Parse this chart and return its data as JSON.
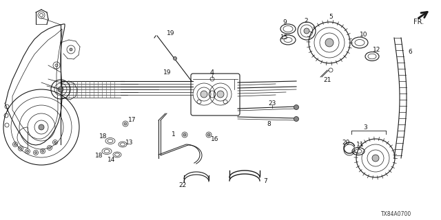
{
  "bg_color": "#ffffff",
  "diagram_code": "TX84A0700",
  "fr_label": "FR.",
  "col": "#1a1a1a",
  "lw_main": 0.8,
  "lw_thin": 0.5,
  "housing": {
    "outer_x": [
      8,
      10,
      15,
      22,
      32,
      42,
      52,
      60,
      68,
      74,
      80,
      85,
      88,
      90,
      91,
      91,
      90,
      88,
      86,
      85,
      85,
      86,
      88,
      89,
      89,
      88,
      85,
      80,
      74,
      68,
      62,
      56,
      50,
      44,
      38,
      32,
      26,
      20,
      15,
      11,
      8,
      7,
      7,
      8
    ],
    "outer_y": [
      148,
      130,
      112,
      95,
      78,
      65,
      55,
      48,
      43,
      40,
      38,
      36,
      35,
      36,
      40,
      50,
      62,
      76,
      90,
      105,
      120,
      135,
      150,
      165,
      178,
      190,
      202,
      212,
      220,
      225,
      228,
      228,
      226,
      222,
      216,
      208,
      198,
      185,
      170,
      160,
      152,
      148,
      148,
      148
    ]
  }
}
